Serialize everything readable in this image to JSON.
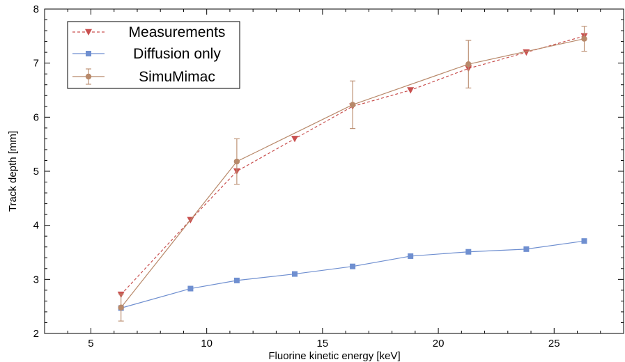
{
  "chart_data": {
    "type": "line",
    "xlabel": "Fluorine kinetic energy [keV]",
    "ylabel": "Track depth [mm]",
    "xlim": [
      3,
      28
    ],
    "ylim": [
      2,
      8
    ],
    "xticks": [
      5,
      10,
      15,
      20,
      25
    ],
    "yticks": [
      2,
      3,
      4,
      5,
      6,
      7,
      8
    ],
    "xtick_labels": [
      "5",
      "10",
      "15",
      "20",
      "25"
    ],
    "ytick_labels": [
      "2",
      "3",
      "4",
      "5",
      "6",
      "7",
      "8"
    ],
    "grid": false,
    "legend_position": "top-left",
    "series": [
      {
        "name": "Measurements",
        "color": "#c9504f",
        "line_style": "dashed",
        "marker": "triangle-down",
        "x": [
          6.3,
          9.3,
          11.3,
          13.8,
          16.3,
          18.8,
          21.3,
          23.8,
          26.3
        ],
        "y": [
          2.72,
          4.1,
          5.0,
          5.6,
          6.2,
          6.5,
          6.9,
          7.2,
          7.5
        ]
      },
      {
        "name": "Diffusion only",
        "color": "#6f8fd0",
        "line_style": "solid",
        "marker": "square",
        "x": [
          6.3,
          9.3,
          11.3,
          13.8,
          16.3,
          18.8,
          21.3,
          23.8,
          26.3
        ],
        "y": [
          2.47,
          2.83,
          2.98,
          3.1,
          3.24,
          3.43,
          3.51,
          3.56,
          3.71
        ]
      },
      {
        "name": "SimuMimac",
        "color": "#b8896a",
        "line_style": "solid",
        "marker": "circle",
        "x": [
          6.3,
          11.3,
          16.3,
          21.3,
          26.3
        ],
        "y": [
          2.48,
          5.18,
          6.23,
          6.98,
          7.45
        ],
        "yerr": [
          0.25,
          0.42,
          0.44,
          0.44,
          0.23
        ]
      }
    ]
  }
}
